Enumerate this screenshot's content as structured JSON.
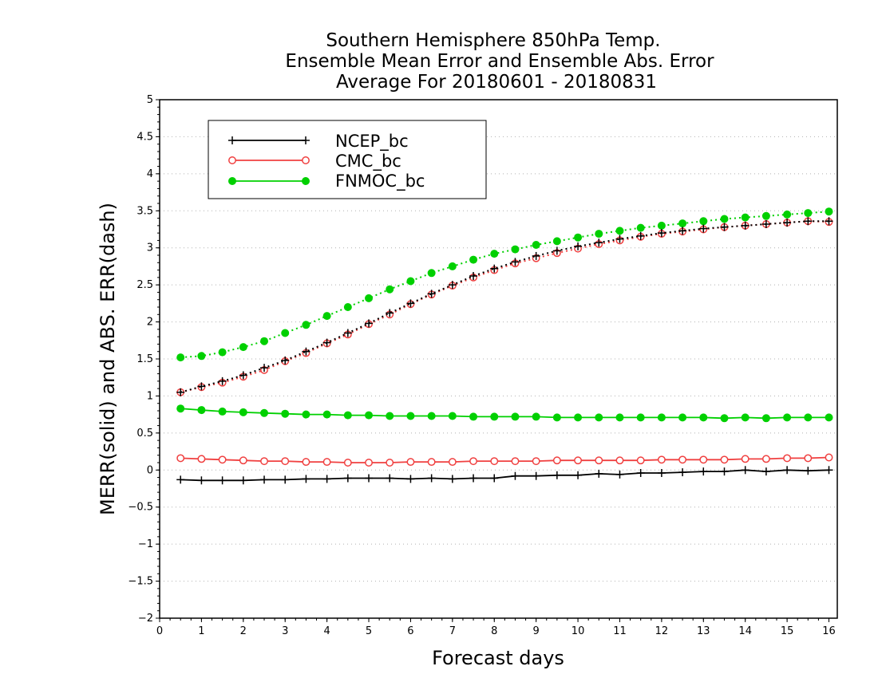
{
  "chart_data": {
    "type": "line",
    "title": [
      "Southern Hemisphere 850hPa Temp.",
      "Ensemble Mean Error and Ensemble Abs. Error",
      "Average For 20180601 - 20180831"
    ],
    "xlabel": "Forecast days",
    "ylabel": "MERR(solid) and ABS. ERR(dash)",
    "xlim": [
      0,
      16.2
    ],
    "ylim": [
      -2,
      5
    ],
    "xticks": [
      "0",
      "1",
      "2",
      "3",
      "4",
      "5",
      "6",
      "7",
      "8",
      "9",
      "10",
      "11",
      "12",
      "13",
      "14",
      "15",
      "16"
    ],
    "yticks": [
      "−2",
      "−1.5",
      "−1",
      "−0.5",
      "0",
      "0.5",
      "1",
      "1.5",
      "2",
      "2.5",
      "3",
      "3.5",
      "4",
      "4.5",
      "5"
    ],
    "grid": true,
    "legend_position": "top-left",
    "x": [
      0.5,
      1,
      1.5,
      2,
      2.5,
      3,
      3.5,
      4,
      4.5,
      5,
      5.5,
      6,
      6.5,
      7,
      7.5,
      8,
      8.5,
      9,
      9.5,
      10,
      10.5,
      11,
      11.5,
      12,
      12.5,
      13,
      13.5,
      14,
      14.5,
      15,
      15.5,
      16
    ],
    "series": [
      {
        "name": "NCEP_bc",
        "color": "#000000",
        "marker": "plus",
        "merr": [
          -0.13,
          -0.14,
          -0.14,
          -0.14,
          -0.13,
          -0.13,
          -0.12,
          -0.12,
          -0.11,
          -0.11,
          -0.11,
          -0.12,
          -0.11,
          -0.12,
          -0.11,
          -0.11,
          -0.08,
          -0.08,
          -0.07,
          -0.07,
          -0.05,
          -0.06,
          -0.04,
          -0.04,
          -0.03,
          -0.02,
          -0.02,
          0.0,
          -0.02,
          0.0,
          -0.01,
          0.0
        ],
        "abs_err": [
          1.05,
          1.13,
          1.2,
          1.28,
          1.38,
          1.48,
          1.6,
          1.72,
          1.85,
          1.98,
          2.12,
          2.25,
          2.38,
          2.5,
          2.62,
          2.72,
          2.81,
          2.89,
          2.96,
          3.02,
          3.07,
          3.12,
          3.16,
          3.2,
          3.23,
          3.26,
          3.28,
          3.3,
          3.32,
          3.34,
          3.36,
          3.36
        ]
      },
      {
        "name": "CMC_bc",
        "color": "#f04040",
        "marker": "open-circle",
        "merr": [
          0.16,
          0.15,
          0.14,
          0.13,
          0.12,
          0.12,
          0.11,
          0.11,
          0.1,
          0.1,
          0.1,
          0.11,
          0.11,
          0.11,
          0.12,
          0.12,
          0.12,
          0.12,
          0.13,
          0.13,
          0.13,
          0.13,
          0.13,
          0.14,
          0.14,
          0.14,
          0.14,
          0.15,
          0.15,
          0.16,
          0.16,
          0.17
        ],
        "abs_err": [
          1.05,
          1.12,
          1.18,
          1.26,
          1.35,
          1.47,
          1.58,
          1.71,
          1.83,
          1.97,
          2.1,
          2.24,
          2.37,
          2.49,
          2.6,
          2.7,
          2.79,
          2.86,
          2.93,
          2.99,
          3.05,
          3.1,
          3.15,
          3.19,
          3.22,
          3.25,
          3.28,
          3.3,
          3.32,
          3.34,
          3.36,
          3.35
        ]
      },
      {
        "name": "FNMOC_bc",
        "color": "#00d000",
        "marker": "filled-circle",
        "merr": [
          0.83,
          0.81,
          0.79,
          0.78,
          0.77,
          0.76,
          0.75,
          0.75,
          0.74,
          0.74,
          0.73,
          0.73,
          0.73,
          0.73,
          0.72,
          0.72,
          0.72,
          0.72,
          0.71,
          0.71,
          0.71,
          0.71,
          0.71,
          0.71,
          0.71,
          0.71,
          0.7,
          0.71,
          0.7,
          0.71,
          0.71,
          0.71
        ],
        "abs_err": [
          1.52,
          1.54,
          1.59,
          1.66,
          1.74,
          1.85,
          1.96,
          2.08,
          2.2,
          2.32,
          2.44,
          2.55,
          2.66,
          2.75,
          2.84,
          2.92,
          2.98,
          3.04,
          3.09,
          3.14,
          3.19,
          3.23,
          3.27,
          3.3,
          3.33,
          3.36,
          3.39,
          3.41,
          3.43,
          3.45,
          3.47,
          3.49
        ]
      }
    ]
  }
}
